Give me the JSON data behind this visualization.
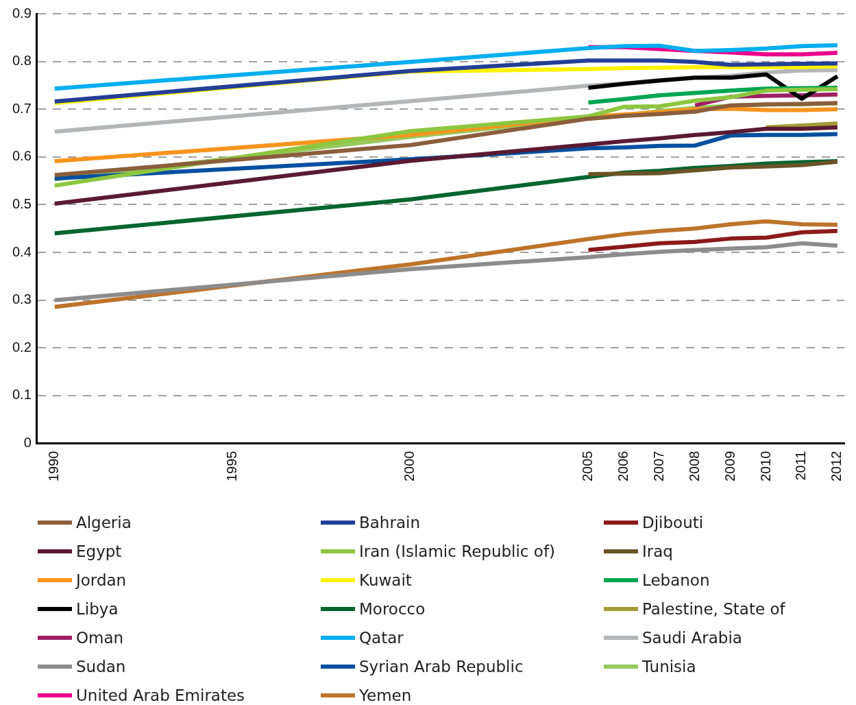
{
  "chart_data": {
    "type": "line",
    "x": [
      1990,
      2000,
      2005,
      2006,
      2007,
      2008,
      2009,
      2010,
      2011,
      2012
    ],
    "xlim": [
      1989.5,
      2012.2
    ],
    "xticks": [
      1990,
      1995,
      2000,
      2005,
      2006,
      2007,
      2008,
      2009,
      2010,
      2011,
      2012
    ],
    "ylim": [
      0,
      0.9
    ],
    "yticks": [
      0,
      0.1,
      0.2,
      0.3,
      0.4,
      0.5,
      0.6,
      0.7,
      0.8,
      0.9
    ],
    "grid": "y",
    "legend": "bottom",
    "marker": "none",
    "line_style": "solid",
    "series": [
      {
        "name": "Algeria",
        "color": "#8b5e3c",
        "values": [
          0.562,
          0.625,
          0.68,
          0.686,
          0.69,
          0.695,
          0.708,
          0.71,
          0.711,
          0.713
        ]
      },
      {
        "name": "Bahrain",
        "color": "#233f96",
        "values": [
          0.716,
          0.78,
          0.802,
          0.802,
          0.802,
          0.799,
          0.793,
          0.794,
          0.795,
          0.796
        ]
      },
      {
        "name": "Djibouti",
        "color": "#8b1a1a",
        "values": [
          null,
          null,
          0.405,
          0.412,
          0.419,
          0.422,
          0.429,
          0.431,
          0.442,
          0.445
        ]
      },
      {
        "name": "Egypt",
        "color": "#5a1a32",
        "values": [
          0.502,
          0.592,
          0.626,
          0.633,
          0.639,
          0.646,
          0.652,
          0.659,
          0.659,
          0.662
        ]
      },
      {
        "name": "Iran (Islamic Republic of)",
        "color": "#8dc63f",
        "values": [
          0.54,
          0.654,
          0.685,
          0.705,
          0.706,
          0.718,
          0.725,
          0.739,
          0.741,
          0.742
        ]
      },
      {
        "name": "Iraq",
        "color": "#6b5427",
        "values": [
          null,
          null,
          0.564,
          0.565,
          0.566,
          0.572,
          0.578,
          0.58,
          0.583,
          0.59
        ]
      },
      {
        "name": "Jordan",
        "color": "#f7941d",
        "values": [
          0.591,
          0.646,
          0.684,
          0.689,
          0.694,
          0.7,
          0.701,
          0.698,
          0.698,
          0.7
        ]
      },
      {
        "name": "Kuwait",
        "color": "#fff200",
        "values": [
          0.713,
          0.779,
          0.784,
          0.786,
          0.787,
          0.788,
          0.788,
          0.788,
          0.788,
          0.79
        ]
      },
      {
        "name": "Lebanon",
        "color": "#00a651",
        "values": [
          null,
          null,
          0.714,
          0.721,
          0.729,
          0.734,
          0.739,
          0.743,
          0.744,
          0.745
        ]
      },
      {
        "name": "Libya",
        "color": "#000000",
        "values": [
          null,
          null,
          0.745,
          0.753,
          0.76,
          0.766,
          0.766,
          0.773,
          0.722,
          0.769
        ]
      },
      {
        "name": "Morocco",
        "color": "#00652e",
        "values": [
          0.44,
          0.511,
          0.558,
          0.567,
          0.571,
          0.577,
          0.581,
          0.586,
          0.589,
          0.591
        ]
      },
      {
        "name": "Palestine, State of",
        "color": "#a39c36",
        "values": [
          null,
          null,
          null,
          null,
          null,
          null,
          null,
          0.662,
          0.666,
          0.67
        ]
      },
      {
        "name": "Oman",
        "color": "#9e1f63",
        "values": [
          null,
          null,
          null,
          null,
          null,
          0.708,
          0.726,
          0.728,
          0.729,
          0.731
        ]
      },
      {
        "name": "Qatar",
        "color": "#00aeef",
        "values": [
          0.743,
          0.799,
          0.828,
          0.832,
          0.833,
          0.822,
          0.824,
          0.827,
          0.832,
          0.834
        ]
      },
      {
        "name": "Saudi Arabia",
        "color": "#b3b5b8",
        "values": [
          0.653,
          0.717,
          0.749,
          0.754,
          0.761,
          0.766,
          0.77,
          0.777,
          0.781,
          0.782
        ]
      },
      {
        "name": "Sudan",
        "color": "#8c8c8c",
        "values": [
          0.3,
          0.365,
          0.39,
          0.396,
          0.401,
          0.405,
          0.408,
          0.411,
          0.419,
          0.414
        ]
      },
      {
        "name": "Syrian Arab Republic",
        "color": "#0050a0",
        "values": [
          0.555,
          0.595,
          0.618,
          0.62,
          0.623,
          0.624,
          0.645,
          0.646,
          0.646,
          0.648
        ]
      },
      {
        "name": "Tunisia",
        "color": "#97c95c",
        "values": [
          0.553,
          0.642,
          0.681,
          0.687,
          0.696,
          0.703,
          0.707,
          0.71,
          0.71,
          0.712
        ]
      },
      {
        "name": "United Arab Emirates",
        "color": "#ec008c",
        "values": [
          null,
          null,
          0.83,
          0.83,
          0.826,
          0.822,
          0.819,
          0.815,
          0.815,
          0.818
        ]
      },
      {
        "name": "Yemen",
        "color": "#bd742a",
        "values": [
          0.286,
          0.375,
          0.428,
          0.438,
          0.445,
          0.45,
          0.459,
          0.465,
          0.459,
          0.458
        ]
      }
    ]
  }
}
